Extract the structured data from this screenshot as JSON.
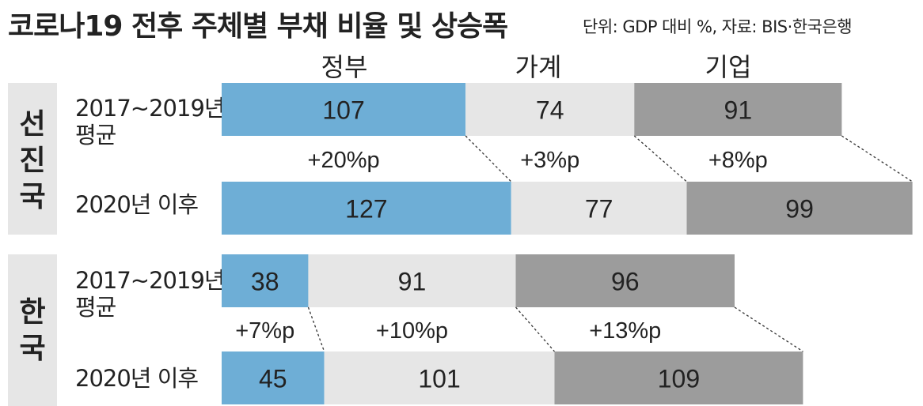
{
  "title": "코로나19 전후 주체별 부채 비율 및 상승폭",
  "source": "단위: GDP 대비 %, 자료: BIS·한국은행",
  "colors": {
    "government": "#6eaed6",
    "household": "#e6e6e6",
    "corporate": "#9c9c9c",
    "panel": "#e6e6e6"
  },
  "chart_data": {
    "type": "bar",
    "stacked": true,
    "orientation": "horizontal",
    "title": "코로나19 전후 주체별 부채 비율 및 상승폭",
    "unit": "GDP 대비 %",
    "categories": [
      "정부",
      "가계",
      "기업"
    ],
    "groups": [
      {
        "name": "선진국",
        "rows": [
          {
            "label_line1": "2017~2019년",
            "label_line2": "평균",
            "values": [
              107,
              74,
              91
            ]
          },
          {
            "label_line1": "2020년 이후",
            "label_line2": "",
            "values": [
              127,
              77,
              99
            ]
          }
        ],
        "changes": [
          "+20%p",
          "+3%p",
          "+8%p"
        ]
      },
      {
        "name": "한국",
        "rows": [
          {
            "label_line1": "2017~2019년",
            "label_line2": "평균",
            "values": [
              38,
              91,
              96
            ]
          },
          {
            "label_line1": "2020년 이후",
            "label_line2": "",
            "values": [
              45,
              101,
              109
            ]
          }
        ],
        "changes": [
          "+7%p",
          "+10%p",
          "+13%p"
        ]
      }
    ]
  }
}
